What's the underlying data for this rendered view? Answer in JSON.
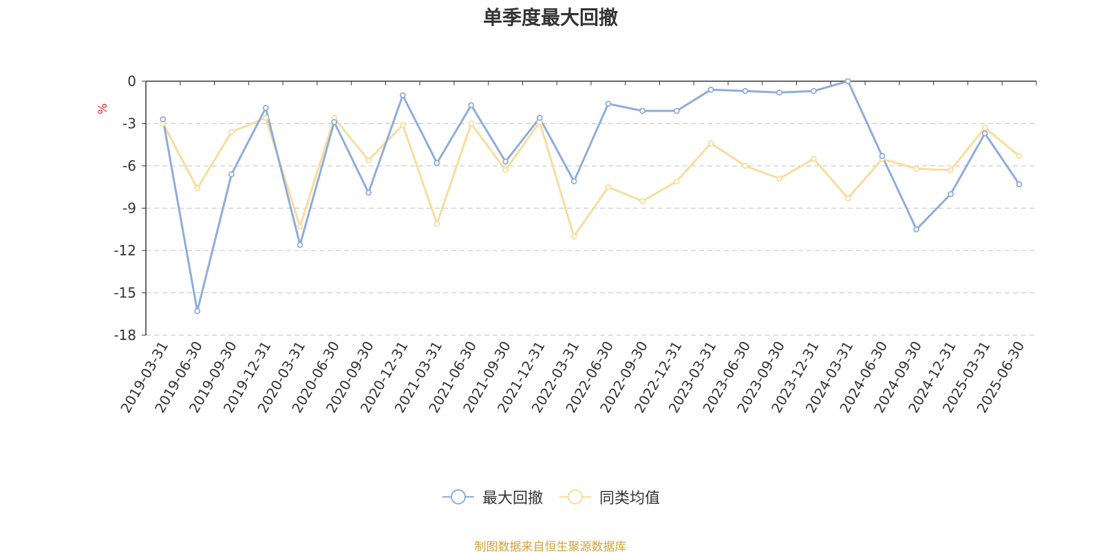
{
  "chart_data": {
    "type": "line",
    "title": "单季度最大回撤",
    "ylabel": "%",
    "ylim": [
      -18,
      0
    ],
    "yticks": [
      0,
      -3,
      -6,
      -9,
      -12,
      -15,
      -18
    ],
    "grid": true,
    "legend_position": "bottom-center",
    "categories": [
      "2019-03-31",
      "2019-06-30",
      "2019-09-30",
      "2019-12-31",
      "2020-03-31",
      "2020-06-30",
      "2020-09-30",
      "2020-12-31",
      "2021-03-31",
      "2021-06-30",
      "2021-09-30",
      "2021-12-31",
      "2022-03-31",
      "2022-06-30",
      "2022-09-30",
      "2022-12-31",
      "2023-03-31",
      "2023-06-30",
      "2023-09-30",
      "2023-12-31",
      "2024-03-31",
      "2024-06-30",
      "2024-09-30",
      "2024-12-31",
      "2025-03-31",
      "2025-06-30"
    ],
    "series": [
      {
        "name": "最大回撤",
        "color": "#8eacd9",
        "values": [
          -2.7,
          -16.3,
          -6.6,
          -1.9,
          -11.6,
          -2.9,
          -7.9,
          -1.0,
          -5.8,
          -1.7,
          -5.7,
          -2.6,
          -7.1,
          -1.6,
          -2.1,
          -2.1,
          -0.6,
          -0.7,
          -0.8,
          -0.7,
          0.0,
          -5.3,
          -10.5,
          -8.0,
          -3.7,
          -7.3
        ]
      },
      {
        "name": "同类均值",
        "color": "#f9dc9b",
        "values": [
          -3.0,
          -7.6,
          -3.6,
          -2.6,
          -10.3,
          -2.6,
          -5.6,
          -3.1,
          -10.1,
          -3.0,
          -6.3,
          -2.9,
          -11.0,
          -7.5,
          -8.5,
          -7.1,
          -4.4,
          -6.0,
          -6.9,
          -5.5,
          -8.3,
          -5.5,
          -6.2,
          -6.3,
          -3.3,
          -5.3
        ]
      }
    ]
  },
  "colors": {
    "axis": "#333333",
    "grid": "#cccccc",
    "ylabel_color": "#e8262c",
    "source_color": "#d4a33a"
  },
  "legend": {
    "item1": "最大回撤",
    "item2": "同类均值"
  },
  "source_note": "制图数据来自恒生聚源数据库"
}
